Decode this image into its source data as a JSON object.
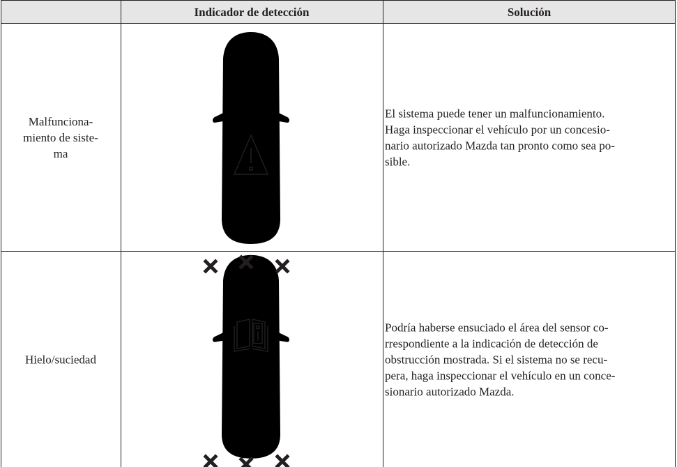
{
  "table": {
    "header": [
      "Indicador de detección",
      "Solución"
    ],
    "rows": [
      {
        "label": [
          "Malfunciona-",
          "miento de siste-",
          "ma"
        ],
        "solution": [
          "El sistema puede tener un malfuncionamiento.",
          "Haga inspeccionar el vehículo por un concesio-",
          "nario autorizado Mazda tan pronto como sea po-",
          "sible."
        ]
      },
      {
        "label": [
          "Hielo/suciedad"
        ],
        "solution": [
          "Podría haberse ensuciado el área del sensor co-",
          "rrespondiente a la indicación de detección de",
          "obstrucción mostrada. Si el sistema no se recu-",
          "pera, haga inspeccionar el vehículo en un conce-",
          "sionario autorizado Mazda."
        ]
      }
    ]
  }
}
